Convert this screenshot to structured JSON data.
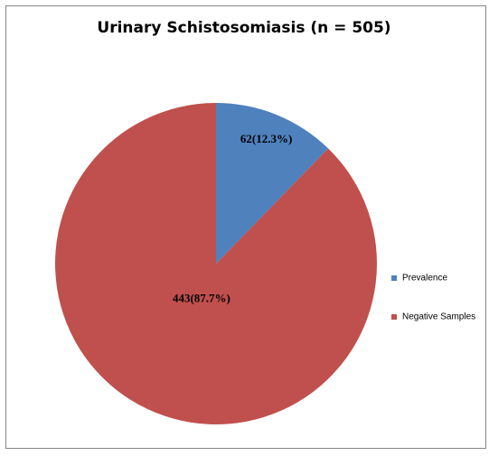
{
  "chart_data": {
    "type": "pie",
    "title": "Urinary Schistosomiasis (n = 505)",
    "categories": [
      "Prevalence",
      "Negative Samples"
    ],
    "values": [
      62,
      443
    ],
    "value_labels": [
      "62(12.3%)",
      "443(87.7%)"
    ],
    "colors": [
      "#4f81bd",
      "#c0504d"
    ],
    "legend": "right"
  }
}
